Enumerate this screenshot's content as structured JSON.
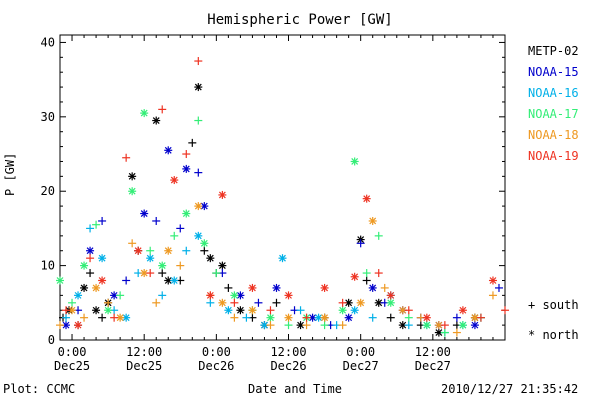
{
  "chart_data": {
    "type": "scatter",
    "title": "Hemispheric Power [GW]",
    "xlabel": "Date and Time",
    "ylabel": "P [GW]",
    "ylim": [
      0,
      41
    ],
    "yticks": [
      0,
      10,
      20,
      30,
      40
    ],
    "x_axis": {
      "range_hours_from_Dec25_00": [
        -2,
        72
      ],
      "ticks": [
        {
          "hour": 0,
          "time": "0:00",
          "date": "Dec25"
        },
        {
          "hour": 12,
          "time": "12:00",
          "date": "Dec25"
        },
        {
          "hour": 24,
          "time": "0:00",
          "date": "Dec26"
        },
        {
          "hour": 36,
          "time": "12:00",
          "date": "Dec26"
        },
        {
          "hour": 48,
          "time": "0:00",
          "date": "Dec27"
        },
        {
          "hour": 60,
          "time": "12:00",
          "date": "Dec27"
        }
      ]
    },
    "symbol_legend": [
      {
        "symbol": "+",
        "label": "south"
      },
      {
        "symbol": "*",
        "label": "north"
      }
    ],
    "series": [
      {
        "name": "METP-02",
        "color": "#000000",
        "points": [
          [
            -1.5,
            3,
            "s"
          ],
          [
            -0.5,
            4,
            "n"
          ],
          [
            1,
            2,
            "s"
          ],
          [
            2,
            7,
            "n"
          ],
          [
            3,
            9,
            "s"
          ],
          [
            4,
            4,
            "n"
          ],
          [
            5,
            3,
            "s"
          ],
          [
            6,
            5,
            "n"
          ],
          [
            10,
            22,
            "n"
          ],
          [
            11,
            12,
            "s"
          ],
          [
            14,
            29.5,
            "n"
          ],
          [
            15,
            9,
            "s"
          ],
          [
            16,
            8,
            "n"
          ],
          [
            18,
            8,
            "s"
          ],
          [
            20,
            26.5,
            "s"
          ],
          [
            21,
            34,
            "n"
          ],
          [
            22,
            12,
            "s"
          ],
          [
            23,
            11,
            "n"
          ],
          [
            24,
            9,
            "s"
          ],
          [
            25,
            10,
            "n"
          ],
          [
            26,
            7,
            "s"
          ],
          [
            28,
            4,
            "n"
          ],
          [
            30,
            3,
            "s"
          ],
          [
            32,
            2,
            "n"
          ],
          [
            34,
            5,
            "s"
          ],
          [
            38,
            2,
            "n"
          ],
          [
            42,
            3,
            "s"
          ],
          [
            46,
            5,
            "n"
          ],
          [
            48,
            13.5,
            "n"
          ],
          [
            49,
            8,
            "s"
          ],
          [
            51,
            5,
            "n"
          ],
          [
            53,
            3,
            "s"
          ],
          [
            55,
            2,
            "n"
          ],
          [
            58,
            2,
            "s"
          ],
          [
            61,
            1,
            "n"
          ],
          [
            64,
            2,
            "s"
          ],
          [
            67,
            3,
            "n"
          ]
        ]
      },
      {
        "name": "NOAA-15",
        "color": "#0000cc",
        "points": [
          [
            -1,
            2,
            "n"
          ],
          [
            1,
            4,
            "s"
          ],
          [
            3,
            12,
            "n"
          ],
          [
            5,
            16,
            "s"
          ],
          [
            7,
            6,
            "n"
          ],
          [
            9,
            8,
            "s"
          ],
          [
            12,
            17,
            "n"
          ],
          [
            14,
            16,
            "s"
          ],
          [
            16,
            25.5,
            "n"
          ],
          [
            18,
            15,
            "s"
          ],
          [
            19,
            23,
            "n"
          ],
          [
            21,
            22.5,
            "s"
          ],
          [
            22,
            18,
            "n"
          ],
          [
            25,
            9,
            "s"
          ],
          [
            28,
            6,
            "n"
          ],
          [
            31,
            5,
            "s"
          ],
          [
            34,
            7,
            "n"
          ],
          [
            37,
            4,
            "s"
          ],
          [
            40,
            3,
            "n"
          ],
          [
            43,
            2,
            "s"
          ],
          [
            46,
            3,
            "n"
          ],
          [
            48,
            13,
            "s"
          ],
          [
            50,
            7,
            "n"
          ],
          [
            52,
            5,
            "s"
          ],
          [
            55,
            4,
            "n"
          ],
          [
            58,
            3,
            "s"
          ],
          [
            61,
            2,
            "n"
          ],
          [
            64,
            3,
            "s"
          ],
          [
            67,
            2,
            "n"
          ],
          [
            71,
            7,
            "s"
          ]
        ]
      },
      {
        "name": "NOAA-16",
        "color": "#00b0e8",
        "points": [
          [
            -1,
            3,
            "s"
          ],
          [
            1,
            6,
            "n"
          ],
          [
            3,
            15,
            "s"
          ],
          [
            5,
            11,
            "n"
          ],
          [
            7,
            4,
            "s"
          ],
          [
            9,
            3,
            "n"
          ],
          [
            11,
            9,
            "s"
          ],
          [
            13,
            11,
            "n"
          ],
          [
            15,
            6,
            "s"
          ],
          [
            17,
            8,
            "n"
          ],
          [
            19,
            12,
            "s"
          ],
          [
            21,
            14,
            "n"
          ],
          [
            23,
            5,
            "s"
          ],
          [
            26,
            4,
            "n"
          ],
          [
            29,
            3,
            "s"
          ],
          [
            32,
            2,
            "n"
          ],
          [
            35,
            11,
            "n"
          ],
          [
            38,
            4,
            "s"
          ],
          [
            41,
            3,
            "n"
          ],
          [
            44,
            2,
            "s"
          ],
          [
            47,
            4,
            "n"
          ],
          [
            50,
            3,
            "s"
          ],
          [
            53,
            6,
            "n"
          ],
          [
            56,
            2,
            "s"
          ],
          [
            59,
            2,
            "n"
          ],
          [
            62,
            1,
            "s"
          ],
          [
            65,
            2,
            "n"
          ],
          [
            68,
            3,
            "s"
          ]
        ]
      },
      {
        "name": "NOAA-17",
        "color": "#33ee77",
        "points": [
          [
            -2,
            8,
            "n"
          ],
          [
            0,
            5,
            "s"
          ],
          [
            2,
            10,
            "n"
          ],
          [
            4,
            15.5,
            "s"
          ],
          [
            6,
            4,
            "n"
          ],
          [
            8,
            6,
            "s"
          ],
          [
            10,
            20,
            "n"
          ],
          [
            12,
            30.5,
            "n"
          ],
          [
            13,
            12,
            "s"
          ],
          [
            15,
            10,
            "n"
          ],
          [
            17,
            14,
            "s"
          ],
          [
            19,
            17,
            "n"
          ],
          [
            21,
            29.5,
            "s"
          ],
          [
            22,
            13,
            "n"
          ],
          [
            24,
            9,
            "s"
          ],
          [
            27,
            6,
            "n"
          ],
          [
            30,
            4,
            "s"
          ],
          [
            33,
            3,
            "n"
          ],
          [
            36,
            2,
            "s"
          ],
          [
            39,
            3,
            "n"
          ],
          [
            42,
            2,
            "s"
          ],
          [
            45,
            4,
            "n"
          ],
          [
            47,
            24,
            "n"
          ],
          [
            49,
            9,
            "s"
          ],
          [
            51,
            14,
            "s"
          ],
          [
            53,
            5,
            "n"
          ],
          [
            56,
            3,
            "s"
          ],
          [
            59,
            2,
            "n"
          ],
          [
            62,
            1,
            "s"
          ],
          [
            65,
            2,
            "n"
          ],
          [
            68,
            3,
            "s"
          ]
        ]
      },
      {
        "name": "NOAA-18",
        "color": "#ee9922",
        "points": [
          [
            -2,
            2,
            "s"
          ],
          [
            0,
            4,
            "n"
          ],
          [
            2,
            3,
            "s"
          ],
          [
            4,
            7,
            "n"
          ],
          [
            6,
            5,
            "s"
          ],
          [
            8,
            3,
            "n"
          ],
          [
            10,
            13,
            "s"
          ],
          [
            12,
            9,
            "n"
          ],
          [
            14,
            5,
            "s"
          ],
          [
            16,
            12,
            "n"
          ],
          [
            18,
            10,
            "s"
          ],
          [
            21,
            18,
            "n"
          ],
          [
            23,
            6,
            "s"
          ],
          [
            25,
            5,
            "n"
          ],
          [
            27,
            3,
            "s"
          ],
          [
            30,
            4,
            "n"
          ],
          [
            33,
            2,
            "s"
          ],
          [
            36,
            3,
            "n"
          ],
          [
            39,
            2,
            "s"
          ],
          [
            42,
            3,
            "n"
          ],
          [
            45,
            2,
            "s"
          ],
          [
            48,
            5,
            "n"
          ],
          [
            50,
            16,
            "n"
          ],
          [
            52,
            7,
            "s"
          ],
          [
            55,
            4,
            "n"
          ],
          [
            58,
            3,
            "s"
          ],
          [
            61,
            2,
            "n"
          ],
          [
            64,
            1,
            "s"
          ],
          [
            67,
            3,
            "n"
          ],
          [
            70,
            6,
            "s"
          ]
        ]
      },
      {
        "name": "NOAA-19",
        "color": "#ee3322",
        "points": [
          [
            -1,
            4,
            "s"
          ],
          [
            1,
            2,
            "n"
          ],
          [
            3,
            11,
            "s"
          ],
          [
            5,
            8,
            "n"
          ],
          [
            7,
            3,
            "s"
          ],
          [
            9,
            24.5,
            "s"
          ],
          [
            11,
            12,
            "n"
          ],
          [
            13,
            9,
            "s"
          ],
          [
            15,
            31,
            "s"
          ],
          [
            17,
            21.5,
            "n"
          ],
          [
            19,
            25,
            "s"
          ],
          [
            21,
            37.5,
            "s"
          ],
          [
            23,
            6,
            "n"
          ],
          [
            25,
            19.5,
            "n"
          ],
          [
            27,
            5,
            "s"
          ],
          [
            30,
            7,
            "n"
          ],
          [
            33,
            4,
            "s"
          ],
          [
            36,
            6,
            "n"
          ],
          [
            39,
            3,
            "s"
          ],
          [
            42,
            7,
            "n"
          ],
          [
            45,
            5,
            "s"
          ],
          [
            47,
            8.5,
            "n"
          ],
          [
            49,
            19,
            "n"
          ],
          [
            51,
            9,
            "s"
          ],
          [
            53,
            6,
            "n"
          ],
          [
            56,
            4,
            "s"
          ],
          [
            59,
            3,
            "n"
          ],
          [
            62,
            2,
            "s"
          ],
          [
            65,
            4,
            "n"
          ],
          [
            68,
            3,
            "s"
          ],
          [
            70,
            8,
            "n"
          ],
          [
            72,
            4,
            "s"
          ]
        ]
      }
    ]
  },
  "footer": {
    "plot_credit": "Plot: CCMC",
    "timestamp": "2010/12/27 21:35:42"
  }
}
